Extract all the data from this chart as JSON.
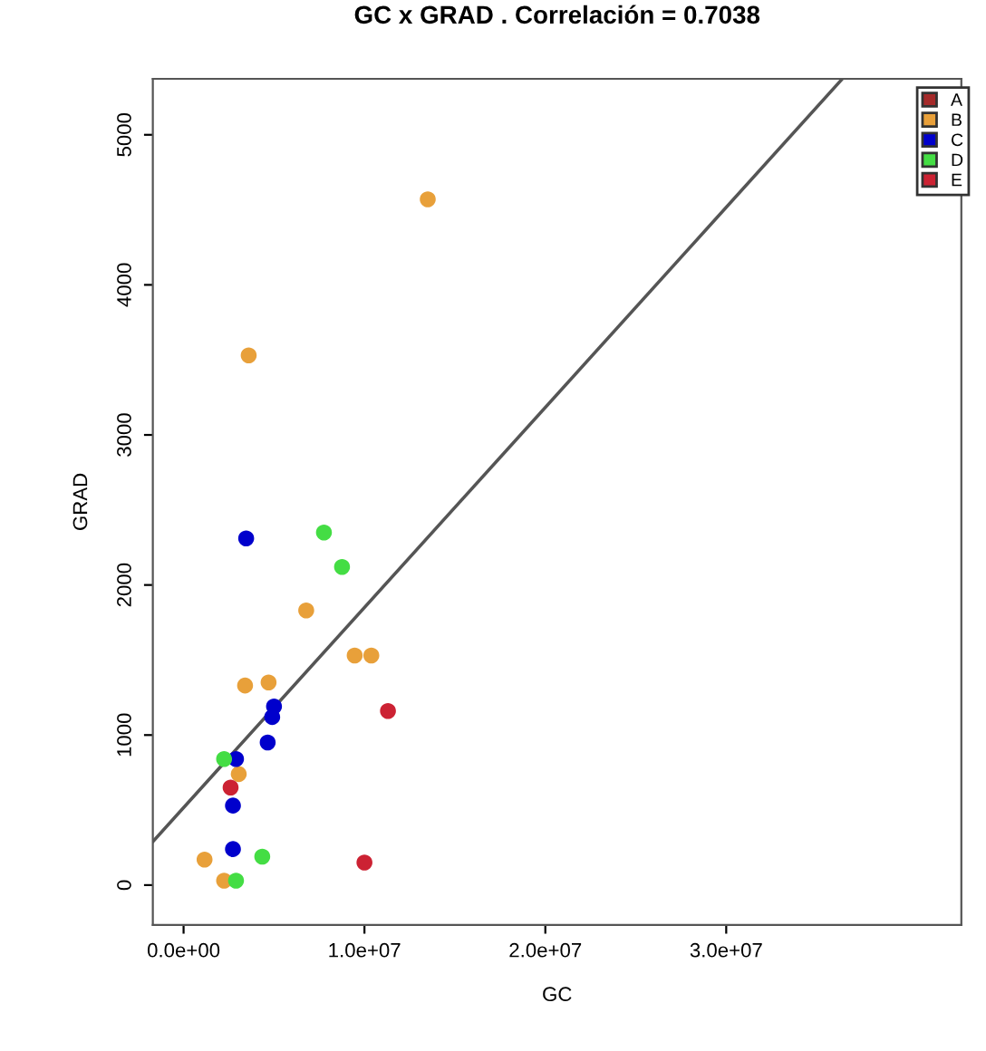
{
  "chart_data": {
    "type": "scatter",
    "title": "GC x GRAD . Correlación = 0.7038",
    "xlabel": "GC",
    "ylabel": "GRAD",
    "xlim": [
      -1700000,
      43000000
    ],
    "ylim": [
      -265,
      5373
    ],
    "xticks": [
      {
        "value": 0,
        "label": "0.0e+00"
      },
      {
        "value": 10000000,
        "label": "1.0e+07"
      },
      {
        "value": 20000000,
        "label": "2.0e+07"
      },
      {
        "value": 30000000,
        "label": "3.0e+07"
      }
    ],
    "yticks": [
      0,
      1000,
      2000,
      3000,
      4000,
      5000
    ],
    "grid": false,
    "legend": "top right",
    "marker": "circle",
    "series": [
      {
        "name": "A",
        "color": "#a52a2a"
      },
      {
        "name": "B",
        "color": "#e8a03a",
        "x": [
          3600000,
          13500000,
          6780000,
          9460000,
          10380000,
          3400000,
          4700000,
          3050000,
          1160000,
          2240000
        ],
        "values": [
          3530,
          4570,
          1830,
          1530,
          1530,
          1330,
          1350,
          740,
          170,
          30
        ]
      },
      {
        "name": "C",
        "color": "#0000cc",
        "x": [
          3460000,
          5000000,
          4900000,
          4650000,
          2900000,
          2730000,
          2730000
        ],
        "values": [
          2310,
          1190,
          1120,
          950,
          840,
          530,
          240
        ]
      },
      {
        "name": "D",
        "color": "#44dd44",
        "x": [
          7760000,
          8760000,
          2240000,
          4350000,
          2900000
        ],
        "values": [
          2350,
          2120,
          840,
          190,
          30
        ]
      },
      {
        "name": "E",
        "color": "#cc2233",
        "x": [
          2600000,
          10000000,
          11300000
        ],
        "values": [
          650,
          150,
          1160
        ]
      },
      {
        "type": "line",
        "marker": "none",
        "color": "#555555",
        "x": [
          -1700000,
          36400000
        ],
        "values": [
          290,
          5370
        ]
      }
    ]
  }
}
